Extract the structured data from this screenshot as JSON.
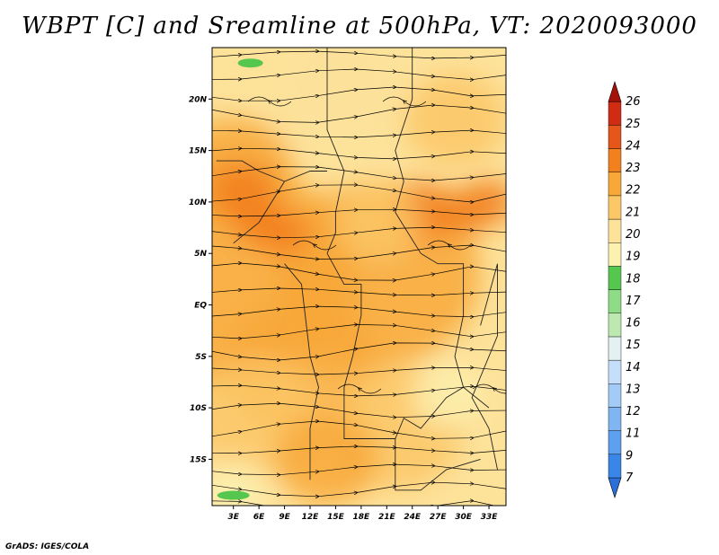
{
  "title": "WBPT [C] and Sreamline at 500hPa, VT: 2020093000",
  "footer": "GrADS: IGES/COLA",
  "chart_data": {
    "type": "heatmap",
    "title": "WBPT [C] and Sreamline at 500hPa, VT: 2020093000",
    "variable": "WBPT [C]",
    "level": "500hPa",
    "valid_time": "2020093000",
    "overlay": "streamlines",
    "x_ticks": [
      "3E",
      "6E",
      "9E",
      "12E",
      "15E",
      "18E",
      "21E",
      "24E",
      "27E",
      "30E",
      "33E"
    ],
    "x_tick_values": [
      3,
      6,
      9,
      12,
      15,
      18,
      21,
      24,
      27,
      30,
      33
    ],
    "y_ticks": [
      "20N",
      "15N",
      "10N",
      "5N",
      "EQ",
      "5S",
      "10S",
      "15S"
    ],
    "y_tick_values": [
      20,
      15,
      10,
      5,
      0,
      -5,
      -10,
      -15
    ],
    "xlim": [
      0.5,
      35
    ],
    "ylim": [
      -19.5,
      25
    ],
    "colorbar": {
      "labels": [
        "7",
        "9",
        "11",
        "12",
        "13",
        "14",
        "15",
        "16",
        "17",
        "18",
        "19",
        "20",
        "21",
        "22",
        "23",
        "24",
        "25",
        "26"
      ],
      "colors": [
        "#2b6fd8",
        "#3a86e8",
        "#5da0ee",
        "#7fb6f2",
        "#a3cbf6",
        "#c5def9",
        "#e3f1f3",
        "#bde9b0",
        "#8fdc86",
        "#55c74f",
        "#fdf1b0",
        "#fde29a",
        "#fcc766",
        "#f8a838",
        "#f2801f",
        "#e5561a",
        "#cf2c13",
        "#a51208"
      ],
      "extend": "both"
    },
    "grid": false
  }
}
